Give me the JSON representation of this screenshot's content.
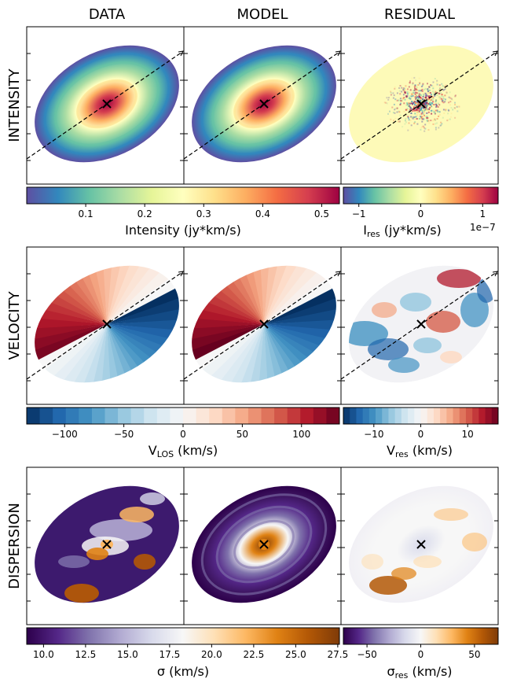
{
  "columns": [
    "DATA",
    "MODEL",
    "RESIDUAL"
  ],
  "rows": [
    "INTENSITY",
    "VELOCITY",
    "DISPERSION"
  ],
  "colorbars": {
    "intensity": {
      "label": "Intensity (jy*km/s)",
      "range": [
        0.0,
        0.53
      ],
      "ticks": [
        "0.1",
        "0.2",
        "0.3",
        "0.4",
        "0.5"
      ],
      "tick_values": [
        0.1,
        0.2,
        0.3,
        0.4,
        0.5
      ],
      "colormap": "Spectral_r",
      "discrete": false
    },
    "intensity_res": {
      "label_main": "I",
      "label_sub": "res",
      "label_unit": " (jy*km/s)",
      "offset_text": "1e−7",
      "range": [
        -1.25,
        1.25
      ],
      "ticks": [
        "−1",
        "0",
        "1"
      ],
      "tick_values": [
        -1,
        0,
        1
      ],
      "colormap": "Spectral_r",
      "discrete": false
    },
    "velocity": {
      "label_main": "V",
      "label_sub": "LOS",
      "label_unit": " (km/s)",
      "range": [
        -132,
        132
      ],
      "ticks": [
        "−100",
        "−50",
        "0",
        "50",
        "100"
      ],
      "tick_values": [
        -100,
        -50,
        0,
        50,
        100
      ],
      "colormap": "RdBu_r",
      "discrete": true
    },
    "velocity_res": {
      "label_main": "V",
      "label_sub": "res",
      "label_unit": " (km/s)",
      "range": [
        -16.5,
        16.5
      ],
      "ticks": [
        "−10",
        "0",
        "10"
      ],
      "tick_values": [
        -10,
        0,
        10
      ],
      "colormap": "RdBu_r",
      "discrete": true
    },
    "dispersion": {
      "label": "σ (km/s)",
      "range": [
        9.0,
        27.6
      ],
      "ticks": [
        "10.0",
        "12.5",
        "15.0",
        "17.5",
        "20.0",
        "22.5",
        "25.0",
        "27.5"
      ],
      "tick_values": [
        10.0,
        12.5,
        15.0,
        17.5,
        20.0,
        22.5,
        25.0,
        27.5
      ],
      "colormap": "PuOr_r",
      "discrete": false
    },
    "dispersion_res": {
      "label_main": "σ",
      "label_sub": "res",
      "label_unit": " (km/s)",
      "range": [
        -72,
        72
      ],
      "ticks": [
        "−50",
        "0",
        "50"
      ],
      "tick_values": [
        -50,
        0,
        50
      ],
      "colormap": "PuOr_r",
      "discrete": false
    }
  },
  "chart_data": {
    "type": "heatmap",
    "layout": "3x3 image grid with shared colorbars",
    "markers": "center cross (×) on every panel",
    "major_axis_line": "dashed, on intensity and velocity panels",
    "axis_tick_labels": "none"
  }
}
